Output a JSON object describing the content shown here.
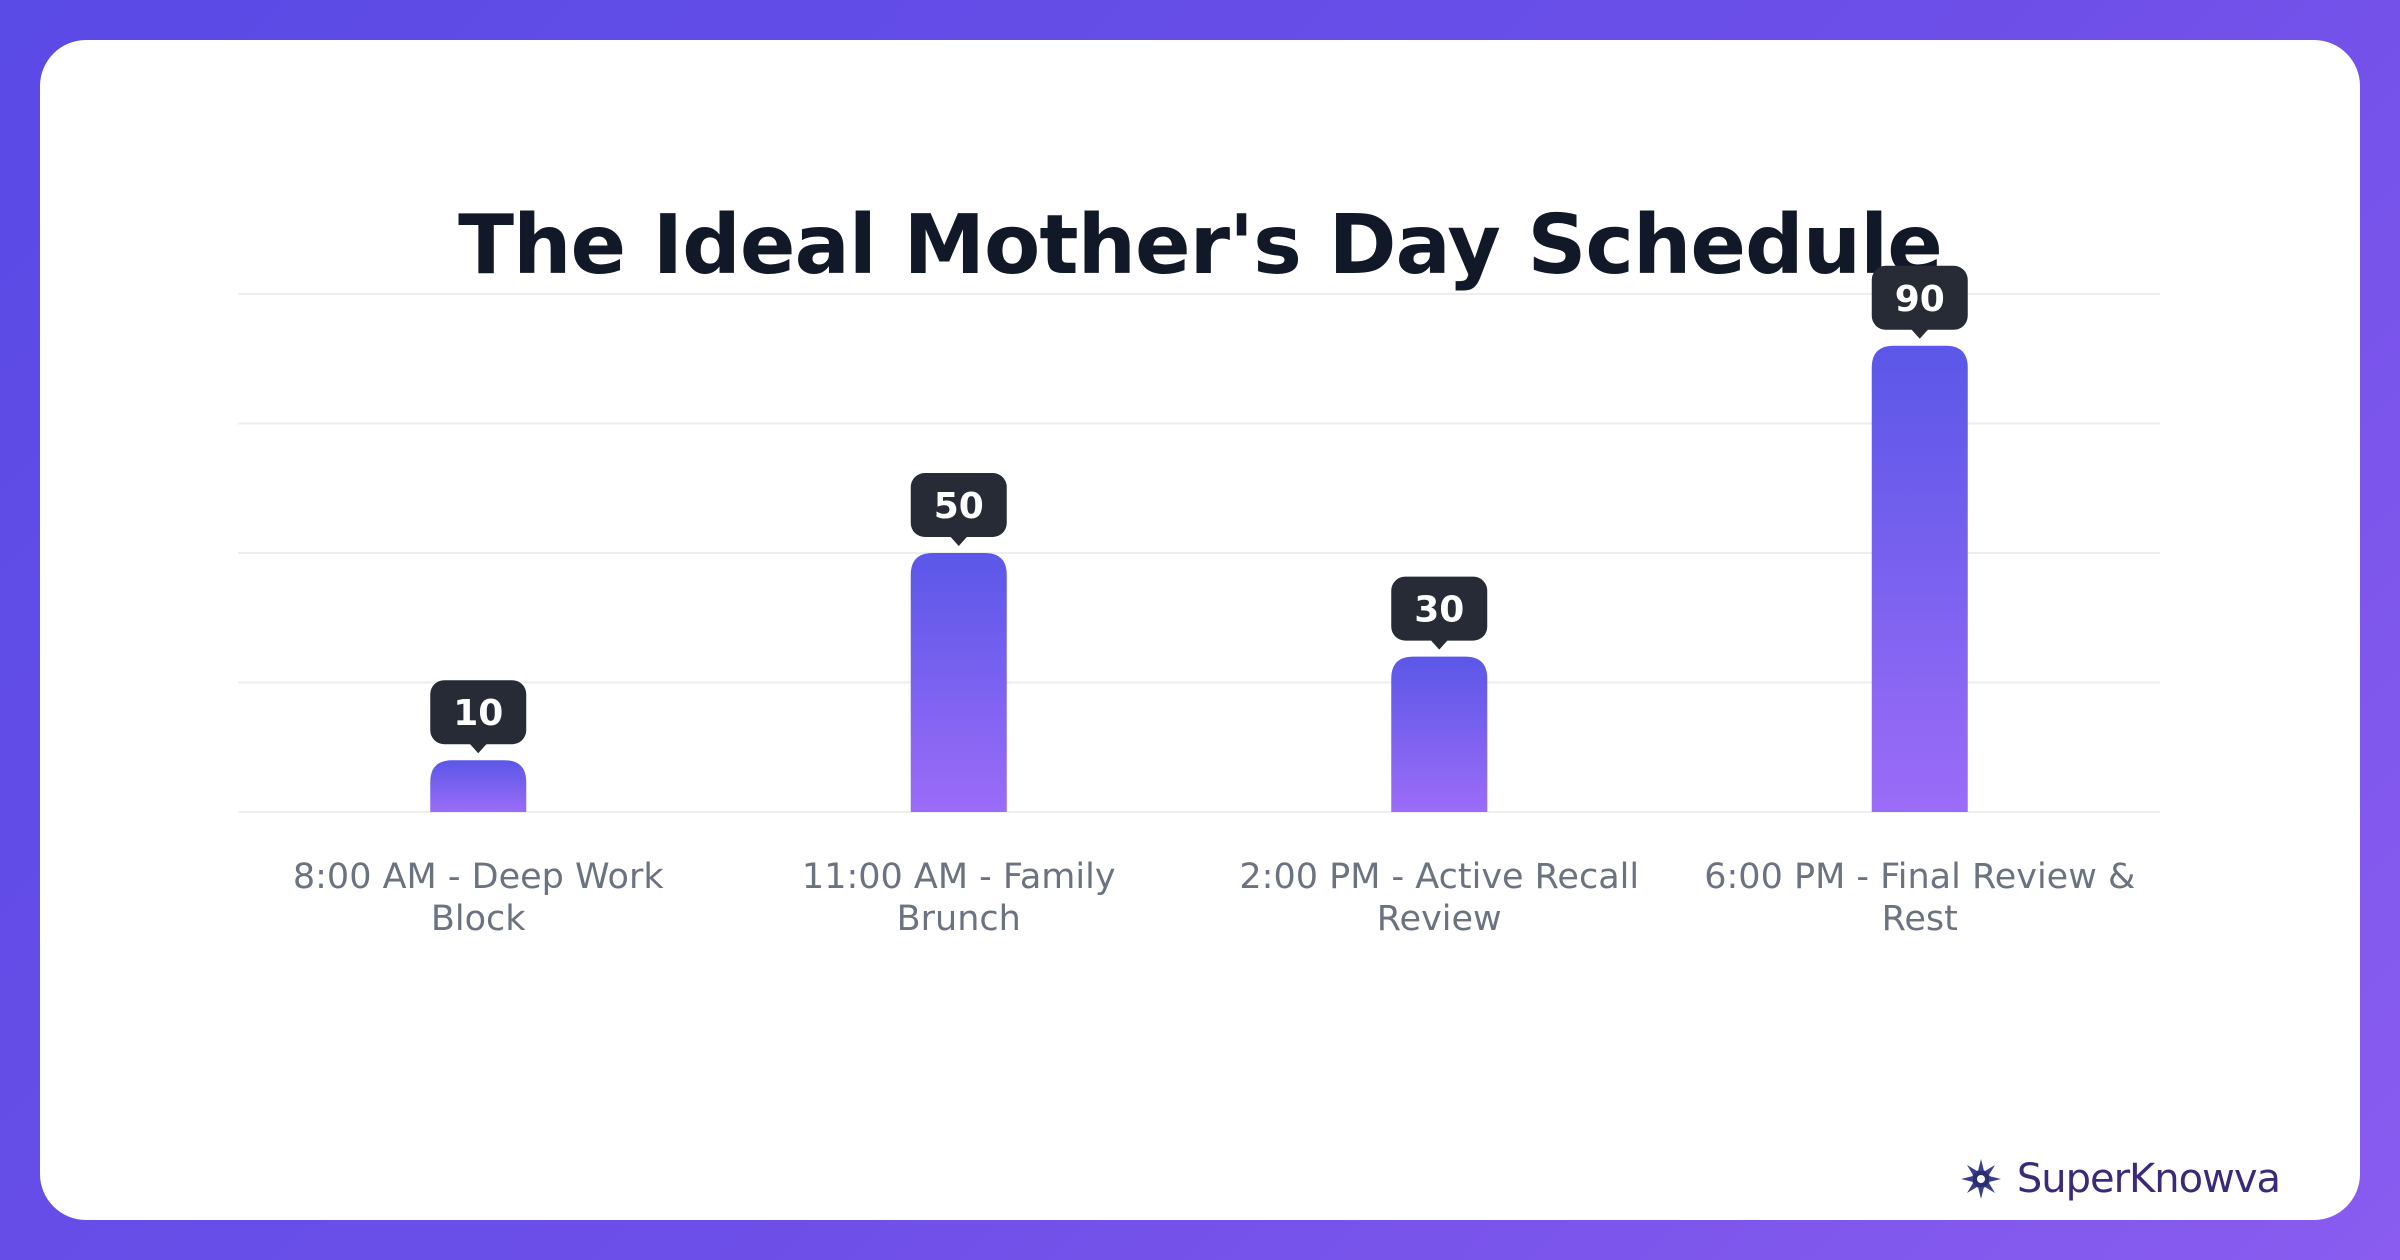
{
  "title": "The Ideal Mother's Day Schedule",
  "brand": {
    "name": "SuperKnowva",
    "logo_icon": "star-burst-icon"
  },
  "colors": {
    "bar_top": "#5b57e8",
    "bar_bottom": "#9b6cf7",
    "label_bg": "#262b36",
    "label_text": "#ffffff",
    "tick_text": "#6b7280",
    "grid": "#eeeeee"
  },
  "chart_data": {
    "type": "bar",
    "title": "The Ideal Mother's Day Schedule",
    "categories": [
      [
        "8:00 AM - Deep Work",
        "Block"
      ],
      [
        "11:00 AM - Family",
        "Brunch"
      ],
      [
        "2:00 PM - Active Recall",
        "Review"
      ],
      [
        "6:00 PM - Final Review &",
        "Rest"
      ]
    ],
    "values": [
      10,
      50,
      30,
      90
    ],
    "ylim": [
      0,
      100
    ],
    "grid": true,
    "legend": "none"
  }
}
